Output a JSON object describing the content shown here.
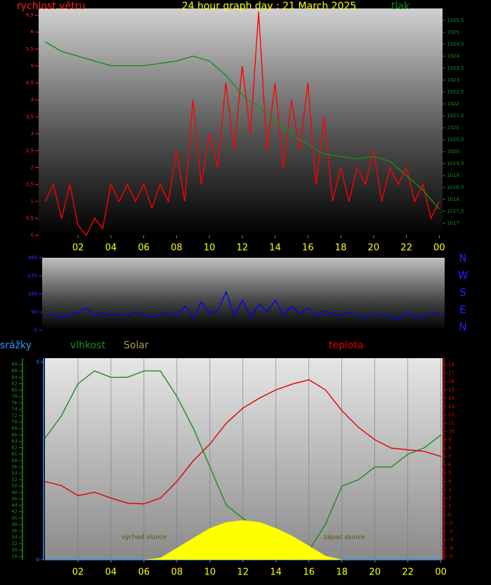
{
  "chart_data": [
    {
      "type": "line",
      "title": "24 hour graph day : 21 March 2025",
      "x": [
        0,
        0.5,
        1,
        1.5,
        2,
        2.5,
        3,
        3.5,
        4,
        4.5,
        5,
        5.5,
        6,
        6.5,
        7,
        7.5,
        8,
        8.5,
        9,
        9.5,
        10,
        10.5,
        11,
        11.5,
        12,
        12.5,
        13,
        13.5,
        14,
        14.5,
        15,
        15.5,
        16,
        16.5,
        17,
        17.5,
        18,
        18.5,
        19,
        19.5,
        20,
        20.5,
        21,
        21.5,
        22,
        22.5,
        23,
        23.5,
        24
      ],
      "xlim": [
        -0.4,
        24.2
      ],
      "xticks": [
        {
          "value": 2,
          "label": "02"
        },
        {
          "value": 4,
          "label": "04"
        },
        {
          "value": 6,
          "label": "06"
        },
        {
          "value": 8,
          "label": "08"
        },
        10,
        12,
        14,
        16,
        18,
        20,
        22,
        {
          "value": 24,
          "label": "00"
        }
      ],
      "ylim": [
        0,
        6.7
      ],
      "yticks": [
        0,
        {
          "value": 0.5,
          "label": "0,5"
        },
        1,
        {
          "value": 1.5,
          "label": "1,5"
        },
        2,
        {
          "value": 2.5,
          "label": "2,5"
        },
        3,
        {
          "value": 3.5,
          "label": "3,5"
        },
        4,
        {
          "value": 4.5,
          "label": "4,5"
        },
        5,
        {
          "value": 5.5,
          "label": "5,5"
        },
        6,
        {
          "value": 6.5,
          "label": "6,5"
        }
      ],
      "y2lim": [
        1016.5,
        1026
      ],
      "y2ticks": [
        1017,
        {
          "value": 1017.5,
          "label": "1017,5"
        },
        1018,
        {
          "value": 1018.5,
          "label": "1018,5"
        },
        1019,
        {
          "value": 1019.5,
          "label": "1019,5"
        },
        1020,
        {
          "value": 1020.5,
          "label": "1020,5"
        },
        1021,
        {
          "value": 1021.5,
          "label": "1021,5"
        },
        1022,
        {
          "value": 1022.5,
          "label": "1022,5"
        },
        1023,
        {
          "value": 1023.5,
          "label": "1023,5"
        },
        1024,
        {
          "value": 1024.5,
          "label": "1024,5"
        },
        1025,
        {
          "value": 1025.5,
          "label": "1025,5"
        }
      ],
      "series": [
        {
          "name": "rychlost větru",
          "color": "#ff0000",
          "values": [
            1.0,
            1.5,
            0.5,
            1.5,
            0.3,
            0,
            0.5,
            0.2,
            1.5,
            1.0,
            1.5,
            1.0,
            1.5,
            0.8,
            1.5,
            1.0,
            2.5,
            1.0,
            4.0,
            1.5,
            3.0,
            2.0,
            4.5,
            2.5,
            5.0,
            3.0,
            6.6,
            2.5,
            4.5,
            2.0,
            4.0,
            2.5,
            4.5,
            1.5,
            3.5,
            1.0,
            2.0,
            1.0,
            2.0,
            1.5,
            2.5,
            1.0,
            2.0,
            1.5,
            2.0,
            1.0,
            1.5,
            0.5,
            1.0
          ]
        },
        {
          "name": "tlak",
          "color": "#1a8c1a",
          "axis": "y2",
          "values": [
            1024.6,
            1024.4,
            1024.2,
            1024.1,
            1024.0,
            1023.9,
            1023.8,
            1023.7,
            1023.6,
            1023.6,
            1023.6,
            1023.6,
            1023.6,
            1023.65,
            1023.7,
            1023.75,
            1023.8,
            1023.9,
            1024.0,
            1023.9,
            1023.8,
            1023.5,
            1023.2,
            1022.8,
            1022.4,
            1022.1,
            1021.9,
            1021.6,
            1021.3,
            1021.0,
            1020.8,
            1020.5,
            1020.3,
            1020.1,
            1019.9,
            1019.85,
            1019.8,
            1019.75,
            1019.7,
            1019.75,
            1019.8,
            1019.7,
            1019.6,
            1019.3,
            1019.0,
            1018.7,
            1018.4,
            1018.0,
            1017.6
          ]
        }
      ]
    },
    {
      "type": "line",
      "x": [
        0,
        0.5,
        1,
        1.5,
        2,
        2.5,
        3,
        3.5,
        4,
        4.5,
        5,
        5.5,
        6,
        6.5,
        7,
        7.5,
        8,
        8.5,
        9,
        9.5,
        10,
        10.5,
        11,
        11.5,
        12,
        12.5,
        13,
        13.5,
        14,
        14.5,
        15,
        15.5,
        16,
        16.5,
        17,
        17.5,
        18,
        18.5,
        19,
        19.5,
        20,
        20.5,
        21,
        21.5,
        22,
        22.5,
        23,
        23.5,
        24
      ],
      "xlim": [
        -0.2,
        24.3
      ],
      "ylim": [
        0,
        360
      ],
      "yticks": [
        0,
        90,
        180,
        270,
        360
      ],
      "compass_labels": [
        "N",
        "W",
        "S",
        "E",
        "N"
      ],
      "series": [
        {
          "color": "#0000ff",
          "values": [
            70,
            80,
            60,
            75,
            90,
            110,
            70,
            85,
            75,
            80,
            70,
            90,
            75,
            65,
            80,
            85,
            70,
            120,
            60,
            140,
            80,
            100,
            190,
            70,
            150,
            60,
            130,
            90,
            150,
            70,
            120,
            80,
            110,
            70,
            95,
            80,
            75,
            90,
            70,
            60,
            80,
            75,
            70,
            55,
            85,
            70,
            60,
            90,
            75
          ]
        }
      ]
    },
    {
      "type": "line",
      "x": [
        0,
        1,
        2,
        3,
        4,
        5,
        6,
        7,
        8,
        9,
        10,
        11,
        12,
        13,
        14,
        15,
        16,
        17,
        18,
        19,
        20,
        21,
        22,
        23,
        24
      ],
      "xlim": [
        0,
        24.1
      ],
      "xticks": [
        {
          "value": 2,
          "label": "02"
        },
        {
          "value": 4,
          "label": "04"
        },
        {
          "value": 6,
          "label": "06"
        },
        {
          "value": 8,
          "label": "08"
        },
        10,
        12,
        14,
        16,
        18,
        20,
        22,
        {
          "value": 24,
          "label": "00"
        }
      ],
      "grid": true,
      "ylim": [
        27,
        90
      ],
      "yticks": [
        28,
        30,
        32,
        34,
        36,
        38,
        40,
        42,
        44,
        46,
        48,
        50,
        52,
        54,
        56,
        58,
        60,
        62,
        64,
        66,
        68,
        70,
        72,
        74,
        76,
        78,
        80,
        82,
        84,
        86,
        88
      ],
      "y2lim": [
        -5.4,
        18.8
      ],
      "y2ticks": [
        -5,
        -4,
        -3,
        -2,
        -1,
        0,
        1,
        2,
        3,
        4,
        5,
        6,
        7,
        8,
        9,
        10,
        11,
        12,
        13,
        14,
        15,
        16,
        17,
        18
      ],
      "y3lim": [
        0,
        5.1
      ],
      "y3ticks": [
        0,
        5
      ],
      "annotations": [
        "východ slunce",
        "západ slunce"
      ],
      "series": [
        {
          "name": "srážky",
          "color": "#3399ff",
          "axis": "y3",
          "values": [
            0,
            0,
            0,
            0,
            0,
            0,
            0,
            0,
            0,
            0,
            0,
            0,
            0,
            0,
            0,
            0,
            0,
            0,
            0,
            0,
            0,
            0,
            0,
            0,
            0
          ]
        },
        {
          "name": "vlhkost",
          "color": "#1a8c1a",
          "values": [
            65,
            72,
            82,
            86,
            84,
            84,
            86,
            86,
            78,
            68,
            56,
            44,
            40,
            36,
            34,
            32,
            30,
            38,
            50,
            52,
            56,
            56,
            60,
            62,
            66
          ]
        },
        {
          "name": "Solar",
          "color": "#ffff00",
          "axis": "y3",
          "type": "area",
          "values": [
            0,
            0,
            0,
            0,
            0,
            0,
            0,
            0.05,
            0.3,
            0.55,
            0.8,
            0.95,
            1.0,
            0.95,
            0.8,
            0.6,
            0.35,
            0.1,
            0,
            0,
            0,
            0,
            0,
            0,
            0
          ]
        },
        {
          "name": "teplota",
          "color": "#e00000",
          "axis": "y2",
          "values": [
            4,
            3.5,
            2.3,
            2.7,
            2,
            1.4,
            1.3,
            2,
            4,
            6.5,
            8.5,
            11,
            12.8,
            14,
            15,
            15.7,
            16.2,
            15,
            12.5,
            10.5,
            9,
            8,
            7.8,
            7.6,
            7
          ]
        }
      ]
    }
  ]
}
